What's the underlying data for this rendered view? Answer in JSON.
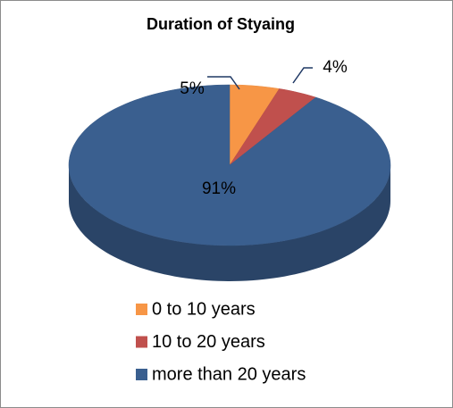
{
  "chart_data": {
    "type": "pie3d",
    "title": "Duration of Styaing",
    "categories": [
      "0 to 10 years",
      "10 to 20 years",
      "more than 20 years"
    ],
    "values": [
      5,
      4,
      91
    ],
    "value_labels": [
      "5%",
      "4%",
      "91%"
    ],
    "colors": [
      "#f79646",
      "#c0504d",
      "#3a5f8f"
    ],
    "legend": "bottom"
  }
}
